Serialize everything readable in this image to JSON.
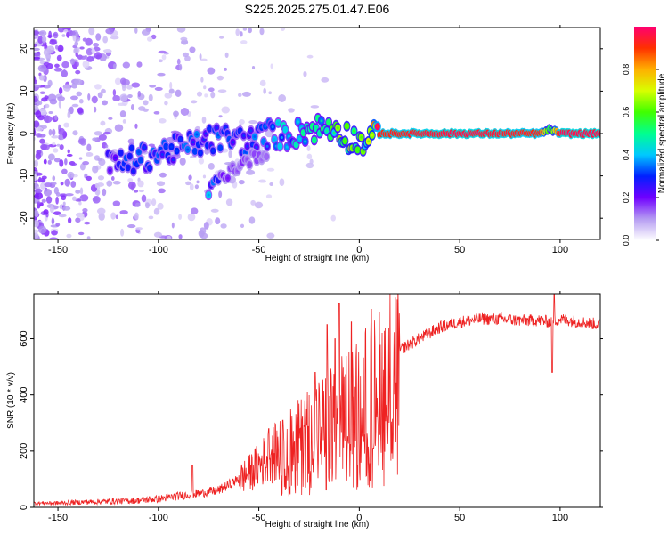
{
  "title": "S225.2025.275.01.47.E06",
  "chart_data": [
    {
      "type": "heatmap",
      "name": "spectrogram",
      "xlabel": "Height of straight line (km)",
      "ylabel": "Frequency (Hz)",
      "xlim": [
        -162,
        120
      ],
      "ylim": [
        -25,
        25
      ],
      "xticks": [
        -150,
        -100,
        -50,
        0,
        50,
        100
      ],
      "xtick_labels": [
        "-150",
        "-100",
        "-50",
        "0",
        "50",
        "100"
      ],
      "yticks": [
        -20,
        -10,
        0,
        10,
        20
      ],
      "ytick_labels": [
        "-20",
        "-10",
        "0",
        "10",
        "20"
      ],
      "colorbar": {
        "label": "Normalized spectral amplitude",
        "range": [
          0,
          1
        ],
        "ticks": [
          0.0,
          0.2,
          0.4,
          0.6,
          0.8
        ],
        "tick_labels": [
          "0.0",
          "0.2",
          "0.4",
          "0.6",
          "0.8"
        ],
        "colors": [
          "#ffffff",
          "#b59cf2",
          "#7000ff",
          "#0020ff",
          "#00c8ff",
          "#00ff90",
          "#40ff00",
          "#d8ff00",
          "#ffb000",
          "#ff3000",
          "#ff0070"
        ]
      },
      "ridge": {
        "x": [
          -125,
          -110,
          -95,
          -85,
          -75,
          -65,
          -55,
          -45,
          -35,
          -25,
          -15,
          -10,
          -5,
          0,
          5,
          10,
          50,
          90,
          95,
          100,
          120
        ],
        "y": [
          -7.5,
          -6.0,
          -4.0,
          -3.0,
          -1.5,
          -1.0,
          -2.0,
          0.0,
          -0.5,
          1.0,
          1.5,
          1.0,
          -1.0,
          -2.0,
          -1.5,
          0.0,
          0.0,
          0.0,
          1.0,
          0.0,
          0.0
        ],
        "amplitude": [
          0.25,
          0.3,
          0.3,
          0.3,
          0.3,
          0.3,
          0.3,
          0.35,
          0.4,
          0.45,
          0.5,
          0.55,
          0.6,
          0.55,
          0.6,
          0.9,
          0.95,
          0.9,
          0.5,
          0.95,
          0.95
        ]
      },
      "secondary_ridge": {
        "x": [
          -75,
          -68,
          -60,
          -52,
          -45
        ],
        "y": [
          -13.5,
          -10,
          -7.5,
          -5.5,
          -4
        ],
        "amplitude": [
          0.35,
          0.2,
          0.15,
          0.15,
          0.12
        ]
      }
    },
    {
      "type": "line",
      "name": "snr",
      "xlabel": "Height of straight line (km)",
      "ylabel": "SNR (10 * v/v)",
      "xlim": [
        -162,
        120
      ],
      "ylim": [
        0,
        760
      ],
      "xticks": [
        -150,
        -100,
        -50,
        0,
        50,
        100
      ],
      "xtick_labels": [
        "-150",
        "-100",
        "-50",
        "0",
        "50",
        "100"
      ],
      "yticks": [
        0,
        200,
        400,
        600
      ],
      "ytick_labels": [
        "0",
        "200",
        "400",
        "600"
      ],
      "color": "#ee2222",
      "series": [
        {
          "name": "SNR",
          "x": [
            -162,
            -150,
            -140,
            -130,
            -120,
            -110,
            -100,
            -90,
            -80,
            -70,
            -65,
            -60,
            -55,
            -50,
            -45,
            -40,
            -35,
            -30,
            -25,
            -20,
            -15,
            -10,
            -5,
            0,
            5,
            10,
            15,
            20,
            25,
            30,
            35,
            40,
            45,
            50,
            60,
            70,
            80,
            90,
            95,
            98,
            100,
            105,
            110,
            115,
            120
          ],
          "values": [
            15,
            15,
            18,
            20,
            22,
            25,
            30,
            40,
            50,
            60,
            80,
            100,
            120,
            150,
            180,
            200,
            230,
            250,
            280,
            300,
            320,
            340,
            380,
            400,
            430,
            460,
            520,
            560,
            580,
            600,
            620,
            640,
            650,
            660,
            670,
            670,
            665,
            665,
            660,
            665,
            670,
            665,
            660,
            655,
            650
          ]
        }
      ],
      "spikes": [
        {
          "x": -83,
          "value": 150
        },
        {
          "x": -45,
          "value": 280
        },
        {
          "x": -38,
          "value": 310
        },
        {
          "x": -27,
          "value": 380
        },
        {
          "x": -22,
          "value": 480
        },
        {
          "x": -16,
          "value": 650
        },
        {
          "x": -12,
          "value": 600
        },
        {
          "x": -10,
          "value": 725
        },
        {
          "x": -4,
          "value": 660
        },
        {
          "x": 6,
          "value": 705
        },
        {
          "x": 97,
          "value": 760
        }
      ],
      "dips": [
        {
          "x": 7,
          "value": 210
        },
        {
          "x": 96,
          "value": 480
        }
      ]
    }
  ]
}
